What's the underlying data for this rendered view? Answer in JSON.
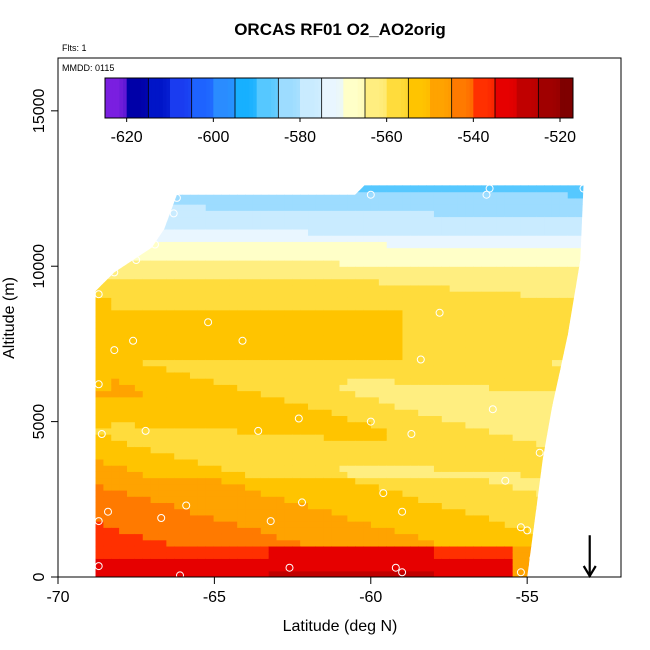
{
  "chart_data": {
    "type": "heatmap",
    "title": "ORCAS RF01 O2_AO2orig",
    "flights_note": "Flts: 1",
    "date_note": "MMDD: 0115",
    "xlabel": "Latitude (deg N)",
    "ylabel": "Altitude (m)",
    "xlim": [
      -70,
      -52
    ],
    "ylim": [
      0,
      16700
    ],
    "x_ticks": [
      -70,
      -65,
      -60,
      -55
    ],
    "y_ticks": [
      0,
      5000,
      10000,
      15000
    ],
    "colorbar": {
      "min": -625,
      "max": -517,
      "ticks": [
        -620,
        -600,
        -580,
        -560,
        -540,
        -520
      ],
      "boundaries": [
        -625,
        -620,
        -615,
        -610,
        -605,
        -600,
        -595,
        -590,
        -585,
        -580,
        -575,
        -570,
        -565,
        -560,
        -555,
        -550,
        -545,
        -540,
        -535,
        -530,
        -525,
        -520,
        -517
      ],
      "colors": [
        "#7a1fe0",
        "#0000a8",
        "#0015c8",
        "#1a3cf0",
        "#1e63ff",
        "#2a8cff",
        "#17b0ff",
        "#56c8ff",
        "#9ddcff",
        "#c9ebff",
        "#e9f6ff",
        "#ffffc8",
        "#ffee80",
        "#ffdc3c",
        "#ffc400",
        "#ffa300",
        "#ff7a00",
        "#ff3000",
        "#e60000",
        "#c00000",
        "#a00000",
        "#7f0000"
      ]
    },
    "domain": {
      "x_range": [
        -68.8,
        -53.2
      ],
      "top_altitude_edge": [
        [
          -68.8,
          9200
        ],
        [
          -68.2,
          9800
        ],
        [
          -67.6,
          10200
        ],
        [
          -67.0,
          10600
        ],
        [
          -66.6,
          11200
        ],
        [
          -66.2,
          12300
        ],
        [
          -65.0,
          12300
        ],
        [
          -63.0,
          12300
        ],
        [
          -60.5,
          12300
        ],
        [
          -60.2,
          12600
        ],
        [
          -58.0,
          12600
        ],
        [
          -55.0,
          12600
        ],
        [
          -53.2,
          12600
        ]
      ],
      "bottom_altitude_edge": [
        [
          -68.8,
          0
        ],
        [
          -55.0,
          0
        ],
        [
          -54.8,
          1500
        ],
        [
          -54.5,
          3800
        ],
        [
          -54.2,
          5500
        ],
        [
          -54.0,
          6400
        ],
        [
          -53.7,
          7800
        ],
        [
          -53.3,
          10200
        ],
        [
          -53.2,
          12600
        ]
      ]
    },
    "flight_track_points": [
      [
        -68.7,
        9100
      ],
      [
        -68.2,
        9800
      ],
      [
        -67.5,
        10200
      ],
      [
        -66.9,
        10700
      ],
      [
        -66.3,
        11700
      ],
      [
        -66.2,
        12200
      ],
      [
        -60.5,
        12500
      ],
      [
        -56.2,
        12500
      ],
      [
        -53.2,
        12500
      ],
      [
        -53.4,
        6400
      ],
      [
        -54.6,
        4000
      ],
      [
        -55.0,
        1500
      ],
      [
        -55.2,
        150
      ],
      [
        -68.7,
        1800
      ],
      [
        -68.7,
        350
      ],
      [
        -68.7,
        6200
      ],
      [
        -68.6,
        4600
      ],
      [
        -68.4,
        2100
      ],
      [
        -68.2,
        7300
      ],
      [
        -67.6,
        7600
      ],
      [
        -67.2,
        4700
      ],
      [
        -66.7,
        1900
      ],
      [
        -65.9,
        2300
      ],
      [
        -65.2,
        8200
      ],
      [
        -64.1,
        7600
      ],
      [
        -63.6,
        4700
      ],
      [
        -63.2,
        1800
      ],
      [
        -62.3,
        5100
      ],
      [
        -62.2,
        2400
      ],
      [
        -60.0,
        5000
      ],
      [
        -59.6,
        2700
      ],
      [
        -59.0,
        2100
      ],
      [
        -58.7,
        4600
      ],
      [
        -58.4,
        7000
      ],
      [
        -57.8,
        8500
      ],
      [
        -56.1,
        5400
      ],
      [
        -55.7,
        3100
      ],
      [
        -55.2,
        1600
      ],
      [
        -54.8,
        600
      ],
      [
        -56.3,
        12300
      ],
      [
        -60.0,
        12300
      ],
      [
        -59.2,
        300
      ],
      [
        -59.0,
        150
      ],
      [
        -66.1,
        50
      ],
      [
        -62.6,
        300
      ]
    ],
    "annotations": [
      {
        "type": "arrow-down",
        "x": -53.0,
        "y_from": 700,
        "y_to": 0
      }
    ]
  }
}
